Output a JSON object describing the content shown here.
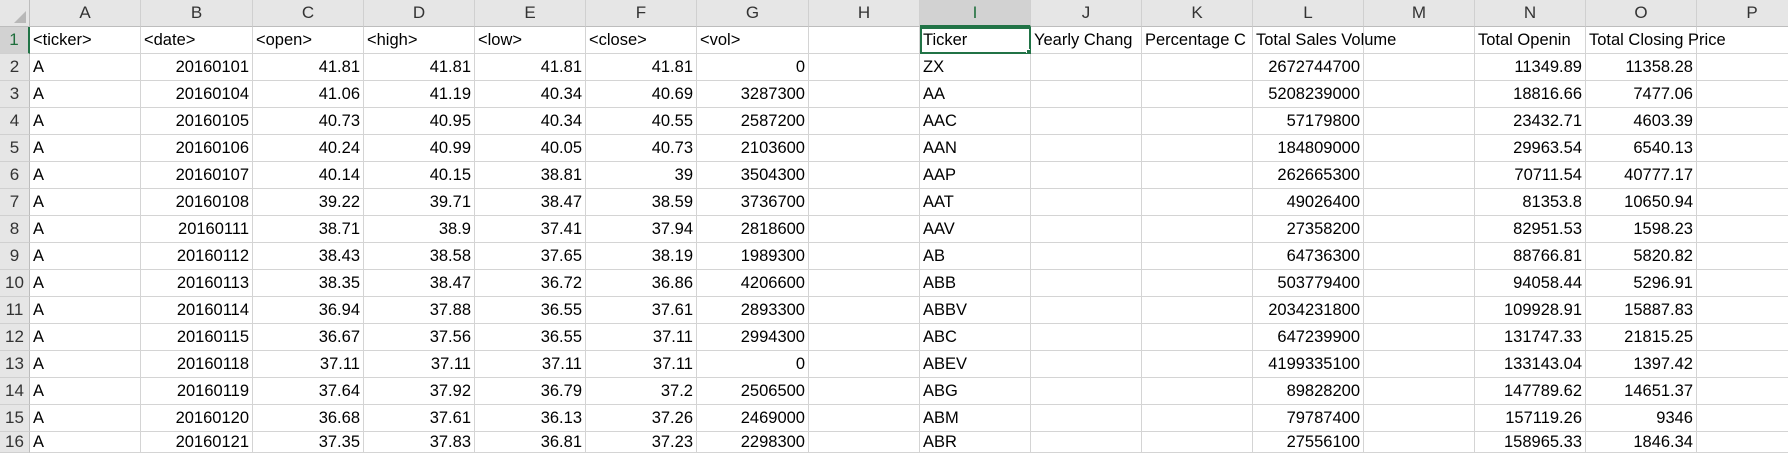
{
  "columns": [
    "A",
    "B",
    "C",
    "D",
    "E",
    "F",
    "G",
    "H",
    "I",
    "J",
    "K",
    "L",
    "M",
    "N",
    "O",
    "P"
  ],
  "active_column": "I",
  "active_row": 1,
  "rows": [
    {
      "n": "1",
      "cells": [
        "<ticker>",
        "<date>",
        "<open>",
        "<high>",
        "<low>",
        "<close>",
        "<vol>",
        "",
        "Ticker",
        "Yearly Chang",
        "Percentage C",
        "Total Sales Volume",
        "",
        "Total Openin",
        "Total Closing Price",
        ""
      ]
    },
    {
      "n": "2",
      "cells": [
        "A",
        "20160101",
        "41.81",
        "41.81",
        "41.81",
        "41.81",
        "0",
        "",
        "ZX",
        "",
        "",
        "2672744700",
        "",
        "11349.89",
        "11358.28",
        ""
      ]
    },
    {
      "n": "3",
      "cells": [
        "A",
        "20160104",
        "41.06",
        "41.19",
        "40.34",
        "40.69",
        "3287300",
        "",
        "AA",
        "",
        "",
        "5208239000",
        "",
        "18816.66",
        "7477.06",
        ""
      ]
    },
    {
      "n": "4",
      "cells": [
        "A",
        "20160105",
        "40.73",
        "40.95",
        "40.34",
        "40.55",
        "2587200",
        "",
        "AAC",
        "",
        "",
        "57179800",
        "",
        "23432.71",
        "4603.39",
        ""
      ]
    },
    {
      "n": "5",
      "cells": [
        "A",
        "20160106",
        "40.24",
        "40.99",
        "40.05",
        "40.73",
        "2103600",
        "",
        "AAN",
        "",
        "",
        "184809000",
        "",
        "29963.54",
        "6540.13",
        ""
      ]
    },
    {
      "n": "6",
      "cells": [
        "A",
        "20160107",
        "40.14",
        "40.15",
        "38.81",
        "39",
        "3504300",
        "",
        "AAP",
        "",
        "",
        "262665300",
        "",
        "70711.54",
        "40777.17",
        ""
      ]
    },
    {
      "n": "7",
      "cells": [
        "A",
        "20160108",
        "39.22",
        "39.71",
        "38.47",
        "38.59",
        "3736700",
        "",
        "AAT",
        "",
        "",
        "49026400",
        "",
        "81353.8",
        "10650.94",
        ""
      ]
    },
    {
      "n": "8",
      "cells": [
        "A",
        "20160111",
        "38.71",
        "38.9",
        "37.41",
        "37.94",
        "2818600",
        "",
        "AAV",
        "",
        "",
        "27358200",
        "",
        "82951.53",
        "1598.23",
        ""
      ]
    },
    {
      "n": "9",
      "cells": [
        "A",
        "20160112",
        "38.43",
        "38.58",
        "37.65",
        "38.19",
        "1989300",
        "",
        "AB",
        "",
        "",
        "64736300",
        "",
        "88766.81",
        "5820.82",
        ""
      ]
    },
    {
      "n": "10",
      "cells": [
        "A",
        "20160113",
        "38.35",
        "38.47",
        "36.72",
        "36.86",
        "4206600",
        "",
        "ABB",
        "",
        "",
        "503779400",
        "",
        "94058.44",
        "5296.91",
        ""
      ]
    },
    {
      "n": "11",
      "cells": [
        "A",
        "20160114",
        "36.94",
        "37.88",
        "36.55",
        "37.61",
        "2893300",
        "",
        "ABBV",
        "",
        "",
        "2034231800",
        "",
        "109928.91",
        "15887.83",
        ""
      ]
    },
    {
      "n": "12",
      "cells": [
        "A",
        "20160115",
        "36.67",
        "37.56",
        "36.55",
        "37.11",
        "2994300",
        "",
        "ABC",
        "",
        "",
        "647239900",
        "",
        "131747.33",
        "21815.25",
        ""
      ]
    },
    {
      "n": "13",
      "cells": [
        "A",
        "20160118",
        "37.11",
        "37.11",
        "37.11",
        "37.11",
        "0",
        "",
        "ABEV",
        "",
        "",
        "4199335100",
        "",
        "133143.04",
        "1397.42",
        ""
      ]
    },
    {
      "n": "14",
      "cells": [
        "A",
        "20160119",
        "37.64",
        "37.92",
        "36.79",
        "37.2",
        "2506500",
        "",
        "ABG",
        "",
        "",
        "89828200",
        "",
        "147789.62",
        "14651.37",
        ""
      ]
    },
    {
      "n": "15",
      "cells": [
        "A",
        "20160120",
        "36.68",
        "37.61",
        "36.13",
        "37.26",
        "2469000",
        "",
        "ABM",
        "",
        "",
        "79787400",
        "",
        "157119.26",
        "9346",
        ""
      ]
    },
    {
      "n": "16",
      "cells": [
        "A",
        "20160121",
        "37.35",
        "37.83",
        "36.81",
        "37.23",
        "2298300",
        "",
        "ABR",
        "",
        "",
        "27556100",
        "",
        "158965.33",
        "1846.34",
        ""
      ]
    }
  ]
}
